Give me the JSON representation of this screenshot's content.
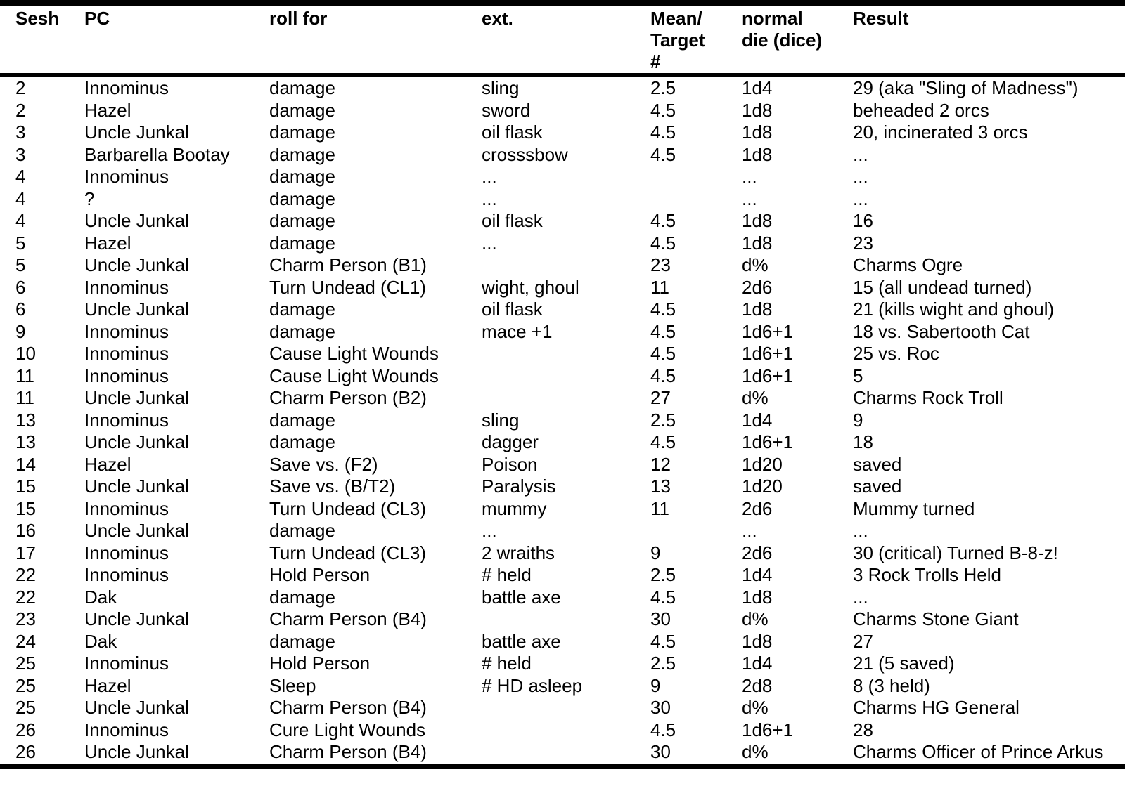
{
  "table": {
    "columns": [
      {
        "key": "sesh",
        "label": "Sesh"
      },
      {
        "key": "pc",
        "label": "PC"
      },
      {
        "key": "roll-for",
        "label": "roll for"
      },
      {
        "key": "ext",
        "label": "ext."
      },
      {
        "key": "mean-target",
        "label": "Mean/\nTarget\n#"
      },
      {
        "key": "normal-die",
        "label": "normal\ndie (dice)"
      },
      {
        "key": "result",
        "label": "Result"
      }
    ],
    "rows": [
      [
        "2",
        "Innominus",
        "damage",
        "sling",
        "2.5",
        "1d4",
        "29 (aka \"Sling of Madness\")"
      ],
      [
        "2",
        "Hazel",
        "damage",
        "sword",
        "4.5",
        "1d8",
        "beheaded 2 orcs"
      ],
      [
        "3",
        "Uncle Junkal",
        "damage",
        "oil flask",
        "4.5",
        "1d8",
        "20, incinerated 3 orcs"
      ],
      [
        "3",
        "Barbarella Bootay",
        "damage",
        "crosssbow",
        "4.5",
        "1d8",
        "..."
      ],
      [
        "4",
        "Innominus",
        "damage",
        "...",
        "",
        "...",
        "..."
      ],
      [
        "4",
        "?",
        "damage",
        "...",
        "",
        "...",
        "..."
      ],
      [
        "4",
        "Uncle Junkal",
        "damage",
        "oil flask",
        "4.5",
        "1d8",
        "16"
      ],
      [
        "5",
        "Hazel",
        "damage",
        "...",
        "4.5",
        "1d8",
        "23"
      ],
      [
        "5",
        "Uncle Junkal",
        "Charm Person (B1)",
        "",
        "23",
        "d%",
        "Charms Ogre"
      ],
      [
        "6",
        "Innominus",
        "Turn Undead (CL1)",
        "wight, ghoul",
        "11",
        "2d6",
        "15 (all undead turned)"
      ],
      [
        "6",
        "Uncle Junkal",
        "damage",
        "oil flask",
        "4.5",
        "1d8",
        "21 (kills wight and ghoul)"
      ],
      [
        "9",
        "Innominus",
        "damage",
        "mace +1",
        "4.5",
        "1d6+1",
        "18 vs. Sabertooth Cat"
      ],
      [
        "10",
        "Innominus",
        "Cause Light Wounds",
        "",
        "4.5",
        "1d6+1",
        "25 vs. Roc"
      ],
      [
        "11",
        "Innominus",
        "Cause Light Wounds",
        "",
        "4.5",
        "1d6+1",
        "5"
      ],
      [
        "11",
        "Uncle Junkal",
        "Charm Person (B2)",
        "",
        "27",
        "d%",
        "Charms Rock Troll"
      ],
      [
        "13",
        "Innominus",
        "damage",
        "sling",
        "2.5",
        "1d4",
        "9"
      ],
      [
        "13",
        "Uncle Junkal",
        "damage",
        "dagger",
        "4.5",
        "1d6+1",
        "18"
      ],
      [
        "14",
        "Hazel",
        "Save vs. (F2)",
        "Poison",
        "12",
        "1d20",
        "saved"
      ],
      [
        "15",
        "Uncle Junkal",
        "Save vs. (B/T2)",
        "Paralysis",
        "13",
        "1d20",
        "saved"
      ],
      [
        "15",
        "Innominus",
        "Turn Undead (CL3)",
        "mummy",
        "11",
        "2d6",
        "Mummy turned"
      ],
      [
        "16",
        "Uncle Junkal",
        "damage",
        "...",
        "",
        "...",
        "..."
      ],
      [
        "17",
        "Innominus",
        "Turn Undead (CL3)",
        "2 wraiths",
        "9",
        "2d6",
        "30 (critical) Turned B-8-z!"
      ],
      [
        "22",
        "Innominus",
        "Hold Person",
        "# held",
        "2.5",
        "1d4",
        "3 Rock Trolls Held"
      ],
      [
        "22",
        "Dak",
        "damage",
        "battle axe",
        "4.5",
        "1d8",
        "..."
      ],
      [
        "23",
        "Uncle Junkal",
        "Charm Person (B4)",
        "",
        "30",
        "d%",
        "Charms Stone Giant"
      ],
      [
        "24",
        "Dak",
        "damage",
        "battle axe",
        "4.5",
        "1d8",
        "27"
      ],
      [
        "25",
        "Innominus",
        "Hold Person",
        "# held",
        "2.5",
        "1d4",
        "21 (5 saved)"
      ],
      [
        "25",
        "Hazel",
        "Sleep",
        "# HD asleep",
        "9",
        "2d8",
        "8 (3 held)"
      ],
      [
        "25",
        "Uncle Junkal",
        "Charm Person (B4)",
        "",
        "30",
        "d%",
        "Charms HG General"
      ],
      [
        "26",
        "Innominus",
        "Cure Light Wounds",
        "",
        "4.5",
        "1d6+1",
        "28"
      ],
      [
        "26",
        "Uncle Junkal",
        "Charm Person (B4)",
        "",
        "30",
        "d%",
        "Charms Officer of Prince Arkus"
      ]
    ]
  }
}
